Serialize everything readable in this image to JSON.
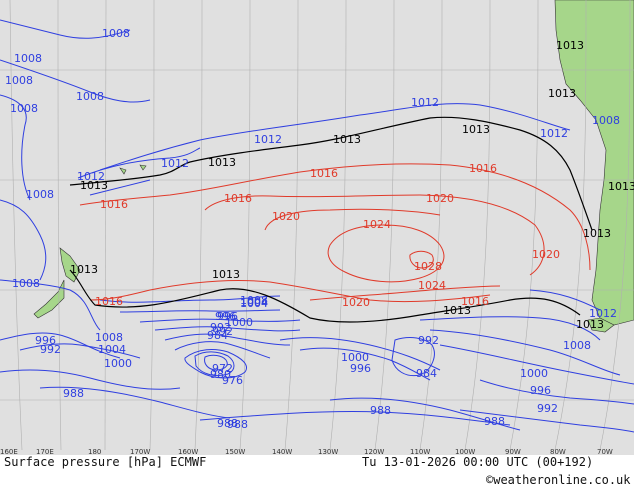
{
  "title": "Surface pressure [hPa] ECMWF",
  "valid_time": "Tu 13-01-2026 00:00 UTC (00+192)",
  "credit": "©weatheronline.co.uk",
  "longitude_labels": [
    "160E",
    "170E",
    "180",
    "170W",
    "160W",
    "150W",
    "140W",
    "130W",
    "120W",
    "110W",
    "100W",
    "90W",
    "80W",
    "70W"
  ],
  "colors": {
    "ocean": "#e0e0e0",
    "land": "#a6d68a",
    "grid": "#b0b0b0",
    "low_isobar": "#2f3fe0",
    "high_isobar": "#e03a2a",
    "reference_isobar": "#000000",
    "footer": "#ffffff"
  },
  "isobar_labels": {
    "black": [
      "1013",
      "1013",
      "1013",
      "1013",
      "1013",
      "1013",
      "1013",
      "1013",
      "1013",
      "1013",
      "1013",
      "1013"
    ],
    "red": [
      "1016",
      "1016",
      "1016",
      "1016",
      "1016",
      "1020",
      "1020",
      "1020",
      "1020",
      "1024",
      "1024",
      "1028",
      "1016"
    ],
    "blue": [
      "1008",
      "1008",
      "1008",
      "1008",
      "1008",
      "1008",
      "1012",
      "1012",
      "1012",
      "1012",
      "1008",
      "1008",
      "1004",
      "1000",
      "996",
      "992",
      "988",
      "1012",
      "1008",
      "1004",
      "1000",
      "996",
      "992",
      "984",
      "980",
      "976",
      "972",
      "996",
      "992",
      "988",
      "984",
      "988",
      "1008",
      "1004",
      "1000",
      "996",
      "992",
      "988",
      "1012",
      "1008",
      "1000",
      "992",
      "988",
      "996"
    ]
  }
}
